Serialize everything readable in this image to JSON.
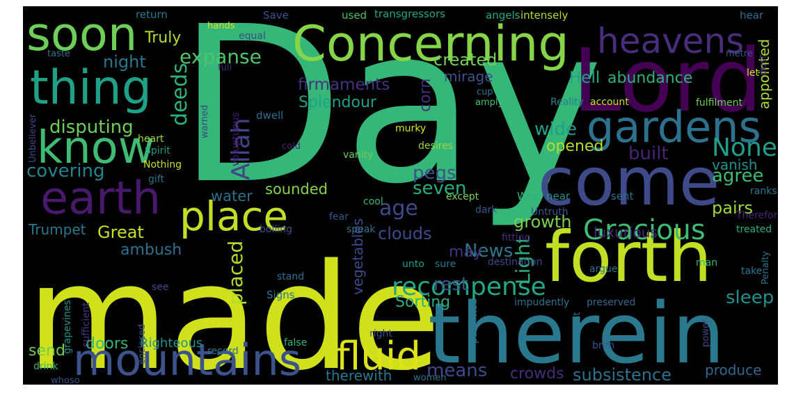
{
  "words": [
    {
      "text": "Day",
      "color": "#35b779"
    },
    {
      "text": "made",
      "color": "#d0e11c"
    },
    {
      "text": "Lord",
      "color": "#440154"
    },
    {
      "text": "therein",
      "color": "#2a788e"
    },
    {
      "text": "forth",
      "color": "#c2df23"
    },
    {
      "text": "come",
      "color": "#3e4a89"
    },
    {
      "text": "Concerning",
      "color": "#86d549"
    },
    {
      "text": "mountains",
      "color": "#3b528b"
    },
    {
      "text": "soon",
      "color": "#6ece58"
    },
    {
      "text": "thing",
      "color": "#1fa187"
    },
    {
      "text": "know",
      "color": "#3fbc73"
    },
    {
      "text": "earth",
      "color": "#48186a"
    },
    {
      "text": "gardens",
      "color": "#2c728e"
    },
    {
      "text": "heavens",
      "color": "#472d7b"
    },
    {
      "text": "place",
      "color": "#c2df23"
    },
    {
      "text": "fluid",
      "color": "#dde318"
    },
    {
      "text": "Gracious",
      "color": "#3dbc74"
    },
    {
      "text": "recompense",
      "color": "#22a785"
    },
    {
      "text": "None",
      "color": "#1f9e89"
    },
    {
      "text": "Allah",
      "color": "#414487"
    },
    {
      "text": "deeds",
      "color": "#2db27d"
    },
    {
      "text": "expanse",
      "color": "#50c46a"
    },
    {
      "text": "firmaments",
      "color": "#46327e"
    },
    {
      "text": "created",
      "color": "#73d056"
    },
    {
      "text": "night",
      "color": "#2a788e"
    },
    {
      "text": "Truly",
      "color": "#b5de2b"
    },
    {
      "text": "Hell",
      "color": "#20a486"
    },
    {
      "text": "abundance",
      "color": "#2db27d"
    },
    {
      "text": "appointed",
      "color": "#addc30"
    },
    {
      "text": "mirage",
      "color": "#3b528b"
    },
    {
      "text": "disputing",
      "color": "#6ece58"
    },
    {
      "text": "Splendour",
      "color": "#1fa187"
    },
    {
      "text": "corn",
      "color": "#472d7b"
    },
    {
      "text": "wide",
      "color": "#1f9e89"
    },
    {
      "text": "built",
      "color": "#482475"
    },
    {
      "text": "covering",
      "color": "#25838e"
    },
    {
      "text": "pegs",
      "color": "#3b528b"
    },
    {
      "text": "opened",
      "color": "#b5de2b"
    },
    {
      "text": "seven",
      "color": "#29af7f"
    },
    {
      "text": "agree",
      "color": "#3dbc74"
    },
    {
      "text": "vanish",
      "color": "#21918c"
    },
    {
      "text": "age",
      "color": "#3e4a89"
    },
    {
      "text": "water",
      "color": "#2c728e"
    },
    {
      "text": "sounded",
      "color": "#84d44b"
    },
    {
      "text": "pairs",
      "color": "#9fda3a"
    },
    {
      "text": "Great",
      "color": "#c8e020"
    },
    {
      "text": "Trumpet",
      "color": "#2a788e"
    },
    {
      "text": "growth",
      "color": "#7ad151"
    },
    {
      "text": "luxurious",
      "color": "#482878"
    },
    {
      "text": "clouds",
      "color": "#3e4a89"
    },
    {
      "text": "Light",
      "color": "#29af7f"
    },
    {
      "text": "placed",
      "color": "#b5de2b"
    },
    {
      "text": "News",
      "color": "#2a788e"
    },
    {
      "text": "may",
      "color": "#46327e"
    },
    {
      "text": "vegetables",
      "color": "#3e4a89"
    },
    {
      "text": "rest",
      "color": "#3b528b"
    },
    {
      "text": "ambush",
      "color": "#2c728e"
    },
    {
      "text": "sleep",
      "color": "#21918c"
    },
    {
      "text": "Sorting",
      "color": "#29af7f"
    },
    {
      "text": "means",
      "color": "#3e4a89"
    },
    {
      "text": "subsistence",
      "color": "#2c728e"
    },
    {
      "text": "produce",
      "color": "#31688e"
    },
    {
      "text": "crowds",
      "color": "#472d7b"
    },
    {
      "text": "therewith",
      "color": "#2a788e"
    },
    {
      "text": "doors",
      "color": "#35b779"
    },
    {
      "text": "send",
      "color": "#6ece58"
    },
    {
      "text": "Righteous",
      "color": "#21918c"
    },
    {
      "text": "return",
      "color": "#2a788e"
    },
    {
      "text": "Save",
      "color": "#39568c"
    },
    {
      "text": "used",
      "color": "#4ac16d"
    },
    {
      "text": "transgressors",
      "color": "#22a785"
    },
    {
      "text": "angels",
      "color": "#25ab82"
    },
    {
      "text": "intensely",
      "color": "#b5de2b"
    },
    {
      "text": "hear",
      "color": "#2d708e"
    },
    {
      "text": "equal",
      "color": "#3f4788"
    },
    {
      "text": "hands",
      "color": "#d8e219"
    },
    {
      "text": "taste",
      "color": "#2c728e"
    },
    {
      "text": "metre",
      "color": "#39568c"
    },
    {
      "text": "dust",
      "color": "#482878"
    },
    {
      "text": "let",
      "color": "#d0e11c"
    },
    {
      "text": "dwell",
      "color": "#2d708e"
    },
    {
      "text": "full",
      "color": "#482878"
    },
    {
      "text": "voluptuous",
      "color": "#481a6c"
    },
    {
      "text": "warned",
      "color": "#414487"
    },
    {
      "text": "Unbeliever",
      "color": "#3e4a89"
    },
    {
      "text": "heart",
      "color": "#9bd93c"
    },
    {
      "text": "Spirit",
      "color": "#1f9e89"
    },
    {
      "text": "Nothing",
      "color": "#c8e020"
    },
    {
      "text": "gift",
      "color": "#2c728e"
    },
    {
      "text": "cup",
      "color": "#2a788e"
    },
    {
      "text": "amply",
      "color": "#46c06f"
    },
    {
      "text": "Reality",
      "color": "#26828e"
    },
    {
      "text": "account",
      "color": "#d0e11c"
    },
    {
      "text": "fulfilment",
      "color": "#6ece58"
    },
    {
      "text": "murky",
      "color": "#dde318"
    },
    {
      "text": "vanity",
      "color": "#6ece58"
    },
    {
      "text": "desires",
      "color": "#9bd93c"
    },
    {
      "text": "cold",
      "color": "#482475"
    },
    {
      "text": "Woe",
      "color": "#2db27d"
    },
    {
      "text": "near",
      "color": "#21918c"
    },
    {
      "text": "sent",
      "color": "#2c728e"
    },
    {
      "text": "ranks",
      "color": "#2a788e"
    },
    {
      "text": "except",
      "color": "#7ad151"
    },
    {
      "text": "cool",
      "color": "#37b878"
    },
    {
      "text": "dark",
      "color": "#38588c"
    },
    {
      "text": "fear",
      "color": "#3b528b"
    },
    {
      "text": "Untruth",
      "color": "#39568c"
    },
    {
      "text": "Therefore",
      "color": "#482475"
    },
    {
      "text": "treated",
      "color": "#29af7f"
    },
    {
      "text": "boiling",
      "color": "#3b528b"
    },
    {
      "text": "speak",
      "color": "#2c728e"
    },
    {
      "text": "fitting",
      "color": "#482878"
    },
    {
      "text": "Penalty",
      "color": "#2c728e"
    },
    {
      "text": "sufficient",
      "color": "#46327e"
    },
    {
      "text": "grapevines",
      "color": "#21918c"
    },
    {
      "text": "stand",
      "color": "#2c728e"
    },
    {
      "text": "unto",
      "color": "#1f9e89"
    },
    {
      "text": "destination",
      "color": "#3e4a89"
    },
    {
      "text": "sure",
      "color": "#2a788e"
    },
    {
      "text": "argue",
      "color": "#2c728e"
    },
    {
      "text": "man",
      "color": "#35b779"
    },
    {
      "text": "take",
      "color": "#2a788e"
    },
    {
      "text": "Signs",
      "color": "#2a788e"
    },
    {
      "text": "see",
      "color": "#3e4a89"
    },
    {
      "text": "enclosed",
      "color": "#38588c"
    },
    {
      "text": "impudently",
      "color": "#2c728e"
    },
    {
      "text": "preserved",
      "color": "#31688e"
    },
    {
      "text": "permitted",
      "color": "#2c728e"
    },
    {
      "text": "right",
      "color": "#3b528b"
    },
    {
      "text": "power",
      "color": "#3e4a89"
    },
    {
      "text": "straight",
      "color": "#2a788e"
    },
    {
      "text": "brim",
      "color": "#3b528b"
    },
    {
      "text": "record",
      "color": "#2c728e"
    },
    {
      "text": "false",
      "color": "#35b779"
    },
    {
      "text": "drink",
      "color": "#35b779"
    },
    {
      "text": "whoso",
      "color": "#3b528b"
    },
    {
      "text": "women",
      "color": "#2c728e"
    }
  ]
}
